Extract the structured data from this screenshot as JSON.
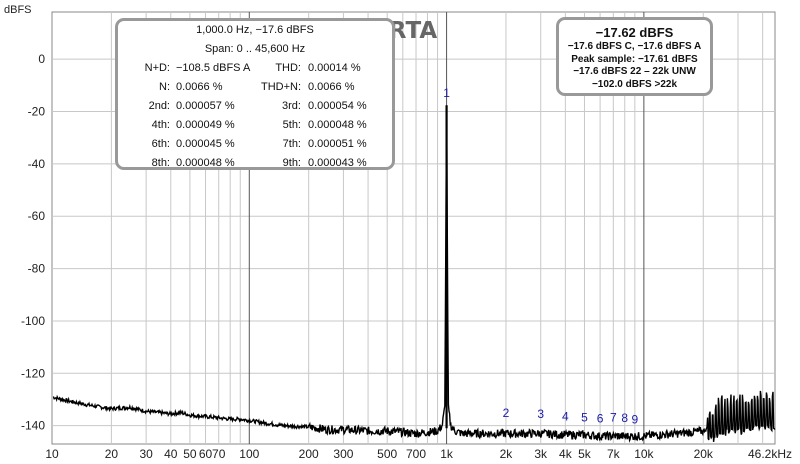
{
  "chart_data": {
    "type": "line",
    "title": "RTA",
    "ylabel": "dBFS",
    "xlabel": "",
    "xscale": "log",
    "xlim": [
      10,
      46200
    ],
    "ylim": [
      -147,
      18
    ],
    "grid": true,
    "y_ticks": [
      0,
      -20,
      -40,
      -60,
      -80,
      -100,
      -120,
      -140
    ],
    "y_tick_labels": [
      "0",
      "-20",
      "-40",
      "-60",
      "-80",
      "-100",
      "-120",
      "-140"
    ],
    "x_ticks": [
      10,
      20,
      30,
      40,
      50,
      60,
      70,
      100,
      200,
      300,
      500,
      700,
      1000,
      2000,
      3000,
      4000,
      5000,
      7000,
      10000,
      20000,
      46200
    ],
    "x_tick_labels": [
      "10",
      "20",
      "30",
      "40",
      "50",
      "60",
      "70",
      "100",
      "200",
      "300",
      "500",
      "700",
      "1k",
      "2k",
      "3k",
      "4k",
      "5k",
      "7k",
      "10k",
      "20k",
      "46.2kHz"
    ],
    "x_minor_ticks": [
      80,
      90,
      400,
      600,
      800,
      900,
      6000,
      8000,
      9000,
      30000,
      40000
    ],
    "series": [
      {
        "x": [
          10,
          12,
          15,
          18,
          20,
          25,
          30,
          35,
          40,
          45,
          50,
          60,
          70,
          80,
          90,
          100,
          120,
          150,
          200,
          250,
          300,
          400,
          500,
          600,
          700,
          800,
          900,
          950,
          980,
          1000,
          1020,
          1050,
          1100,
          1200,
          1500,
          2000,
          3000,
          4000,
          5000,
          6000,
          7000,
          8000,
          10000,
          12000,
          15000,
          20000,
          22000,
          25000,
          28000,
          30000,
          35000,
          40000,
          46200
        ],
        "y": [
          -129,
          -130.5,
          -132,
          -133,
          -133.5,
          -133,
          -134.5,
          -135,
          -135.5,
          -135,
          -136,
          -136.5,
          -137,
          -137.5,
          -137.5,
          -138,
          -139,
          -140,
          -140.5,
          -141.5,
          -141.5,
          -142,
          -142,
          -142.5,
          -143,
          -142.5,
          -142,
          -140,
          -133,
          -17.6,
          -133,
          -140,
          -142,
          -143,
          -143,
          -143,
          -143,
          -143.5,
          -143.5,
          -144,
          -144,
          -144,
          -144,
          -143.5,
          -143,
          -142,
          -140,
          -138,
          -136,
          -137,
          -136,
          -135,
          -136
        ]
      }
    ],
    "harmonics": [
      {
        "label": "1",
        "freq": 1000,
        "level": -17.6
      },
      {
        "label": "2",
        "freq": 2000,
        "level": -140.6
      },
      {
        "label": "3",
        "freq": 3000,
        "level": -140.9
      },
      {
        "label": "4",
        "freq": 4000,
        "level": -141.8
      },
      {
        "label": "5",
        "freq": 5000,
        "level": -142.2
      },
      {
        "label": "6",
        "freq": 6000,
        "level": -142.6
      },
      {
        "label": "7",
        "freq": 7000,
        "level": -142.3
      },
      {
        "label": "8",
        "freq": 8000,
        "level": -142.4
      },
      {
        "label": "9",
        "freq": 9000,
        "level": -142.9
      }
    ]
  },
  "stats_panel": {
    "line1": "1,000.0 Hz, −17.6 dBFS",
    "line2": "Span: 0 .. 45,600 Hz",
    "rows": [
      [
        {
          "label": "N+D:",
          "value": "−108.5 dBFS A"
        },
        {
          "label": "THD:",
          "value": "0.00014 %"
        }
      ],
      [
        {
          "label": "N:",
          "value": "0.0066 %"
        },
        {
          "label": "THD+N:",
          "value": "0.0066 %"
        }
      ],
      [
        {
          "label": "2nd:",
          "value": "0.000057 %"
        },
        {
          "label": "3rd:",
          "value": "0.000054 %"
        }
      ],
      [
        {
          "label": "4th:",
          "value": "0.000049 %"
        },
        {
          "label": "5th:",
          "value": "0.000048 %"
        }
      ],
      [
        {
          "label": "6th:",
          "value": "0.000045 %"
        },
        {
          "label": "7th:",
          "value": "0.000051 %"
        }
      ],
      [
        {
          "label": "8th:",
          "value": "0.000048 %"
        },
        {
          "label": "9th:",
          "value": "0.000043 %"
        }
      ]
    ]
  },
  "level_panel": {
    "main": "−17.62 dBFS",
    "lines": [
      "−17.6 dBFS C, −17.6 dBFS A",
      "Peak sample: −17.61 dBFS",
      "−17.6 dBFS 22 – 22k UNW",
      "−102.0 dBFS >22k"
    ]
  }
}
